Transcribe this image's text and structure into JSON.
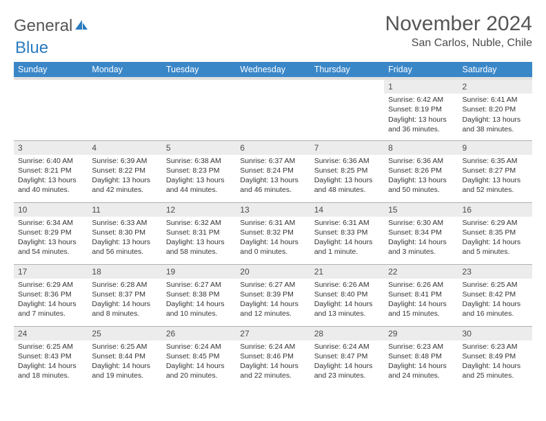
{
  "brand": {
    "part1": "General",
    "part2": "Blue"
  },
  "title": "November 2024",
  "location": "San Carlos, Nuble, Chile",
  "colors": {
    "header_bg": "#3a87c8",
    "header_text": "#ffffff",
    "daynum_bg": "#ececec",
    "border": "#b0b0b0",
    "title_color": "#555555",
    "body_text": "#333333",
    "logo_blue": "#2a7bbf"
  },
  "typography": {
    "title_fontsize": 30,
    "location_fontsize": 16,
    "weekday_fontsize": 12.5,
    "daynum_fontsize": 12,
    "cell_fontsize": 10.5
  },
  "weekdays": [
    "Sunday",
    "Monday",
    "Tuesday",
    "Wednesday",
    "Thursday",
    "Friday",
    "Saturday"
  ],
  "weeks": [
    [
      {
        "n": "",
        "sr": "",
        "ss": "",
        "dl": ""
      },
      {
        "n": "",
        "sr": "",
        "ss": "",
        "dl": ""
      },
      {
        "n": "",
        "sr": "",
        "ss": "",
        "dl": ""
      },
      {
        "n": "",
        "sr": "",
        "ss": "",
        "dl": ""
      },
      {
        "n": "",
        "sr": "",
        "ss": "",
        "dl": ""
      },
      {
        "n": "1",
        "sr": "Sunrise: 6:42 AM",
        "ss": "Sunset: 8:19 PM",
        "dl": "Daylight: 13 hours and 36 minutes."
      },
      {
        "n": "2",
        "sr": "Sunrise: 6:41 AM",
        "ss": "Sunset: 8:20 PM",
        "dl": "Daylight: 13 hours and 38 minutes."
      }
    ],
    [
      {
        "n": "3",
        "sr": "Sunrise: 6:40 AM",
        "ss": "Sunset: 8:21 PM",
        "dl": "Daylight: 13 hours and 40 minutes."
      },
      {
        "n": "4",
        "sr": "Sunrise: 6:39 AM",
        "ss": "Sunset: 8:22 PM",
        "dl": "Daylight: 13 hours and 42 minutes."
      },
      {
        "n": "5",
        "sr": "Sunrise: 6:38 AM",
        "ss": "Sunset: 8:23 PM",
        "dl": "Daylight: 13 hours and 44 minutes."
      },
      {
        "n": "6",
        "sr": "Sunrise: 6:37 AM",
        "ss": "Sunset: 8:24 PM",
        "dl": "Daylight: 13 hours and 46 minutes."
      },
      {
        "n": "7",
        "sr": "Sunrise: 6:36 AM",
        "ss": "Sunset: 8:25 PM",
        "dl": "Daylight: 13 hours and 48 minutes."
      },
      {
        "n": "8",
        "sr": "Sunrise: 6:36 AM",
        "ss": "Sunset: 8:26 PM",
        "dl": "Daylight: 13 hours and 50 minutes."
      },
      {
        "n": "9",
        "sr": "Sunrise: 6:35 AM",
        "ss": "Sunset: 8:27 PM",
        "dl": "Daylight: 13 hours and 52 minutes."
      }
    ],
    [
      {
        "n": "10",
        "sr": "Sunrise: 6:34 AM",
        "ss": "Sunset: 8:29 PM",
        "dl": "Daylight: 13 hours and 54 minutes."
      },
      {
        "n": "11",
        "sr": "Sunrise: 6:33 AM",
        "ss": "Sunset: 8:30 PM",
        "dl": "Daylight: 13 hours and 56 minutes."
      },
      {
        "n": "12",
        "sr": "Sunrise: 6:32 AM",
        "ss": "Sunset: 8:31 PM",
        "dl": "Daylight: 13 hours and 58 minutes."
      },
      {
        "n": "13",
        "sr": "Sunrise: 6:31 AM",
        "ss": "Sunset: 8:32 PM",
        "dl": "Daylight: 14 hours and 0 minutes."
      },
      {
        "n": "14",
        "sr": "Sunrise: 6:31 AM",
        "ss": "Sunset: 8:33 PM",
        "dl": "Daylight: 14 hours and 1 minute."
      },
      {
        "n": "15",
        "sr": "Sunrise: 6:30 AM",
        "ss": "Sunset: 8:34 PM",
        "dl": "Daylight: 14 hours and 3 minutes."
      },
      {
        "n": "16",
        "sr": "Sunrise: 6:29 AM",
        "ss": "Sunset: 8:35 PM",
        "dl": "Daylight: 14 hours and 5 minutes."
      }
    ],
    [
      {
        "n": "17",
        "sr": "Sunrise: 6:29 AM",
        "ss": "Sunset: 8:36 PM",
        "dl": "Daylight: 14 hours and 7 minutes."
      },
      {
        "n": "18",
        "sr": "Sunrise: 6:28 AM",
        "ss": "Sunset: 8:37 PM",
        "dl": "Daylight: 14 hours and 8 minutes."
      },
      {
        "n": "19",
        "sr": "Sunrise: 6:27 AM",
        "ss": "Sunset: 8:38 PM",
        "dl": "Daylight: 14 hours and 10 minutes."
      },
      {
        "n": "20",
        "sr": "Sunrise: 6:27 AM",
        "ss": "Sunset: 8:39 PM",
        "dl": "Daylight: 14 hours and 12 minutes."
      },
      {
        "n": "21",
        "sr": "Sunrise: 6:26 AM",
        "ss": "Sunset: 8:40 PM",
        "dl": "Daylight: 14 hours and 13 minutes."
      },
      {
        "n": "22",
        "sr": "Sunrise: 6:26 AM",
        "ss": "Sunset: 8:41 PM",
        "dl": "Daylight: 14 hours and 15 minutes."
      },
      {
        "n": "23",
        "sr": "Sunrise: 6:25 AM",
        "ss": "Sunset: 8:42 PM",
        "dl": "Daylight: 14 hours and 16 minutes."
      }
    ],
    [
      {
        "n": "24",
        "sr": "Sunrise: 6:25 AM",
        "ss": "Sunset: 8:43 PM",
        "dl": "Daylight: 14 hours and 18 minutes."
      },
      {
        "n": "25",
        "sr": "Sunrise: 6:25 AM",
        "ss": "Sunset: 8:44 PM",
        "dl": "Daylight: 14 hours and 19 minutes."
      },
      {
        "n": "26",
        "sr": "Sunrise: 6:24 AM",
        "ss": "Sunset: 8:45 PM",
        "dl": "Daylight: 14 hours and 20 minutes."
      },
      {
        "n": "27",
        "sr": "Sunrise: 6:24 AM",
        "ss": "Sunset: 8:46 PM",
        "dl": "Daylight: 14 hours and 22 minutes."
      },
      {
        "n": "28",
        "sr": "Sunrise: 6:24 AM",
        "ss": "Sunset: 8:47 PM",
        "dl": "Daylight: 14 hours and 23 minutes."
      },
      {
        "n": "29",
        "sr": "Sunrise: 6:23 AM",
        "ss": "Sunset: 8:48 PM",
        "dl": "Daylight: 14 hours and 24 minutes."
      },
      {
        "n": "30",
        "sr": "Sunrise: 6:23 AM",
        "ss": "Sunset: 8:49 PM",
        "dl": "Daylight: 14 hours and 25 minutes."
      }
    ]
  ]
}
